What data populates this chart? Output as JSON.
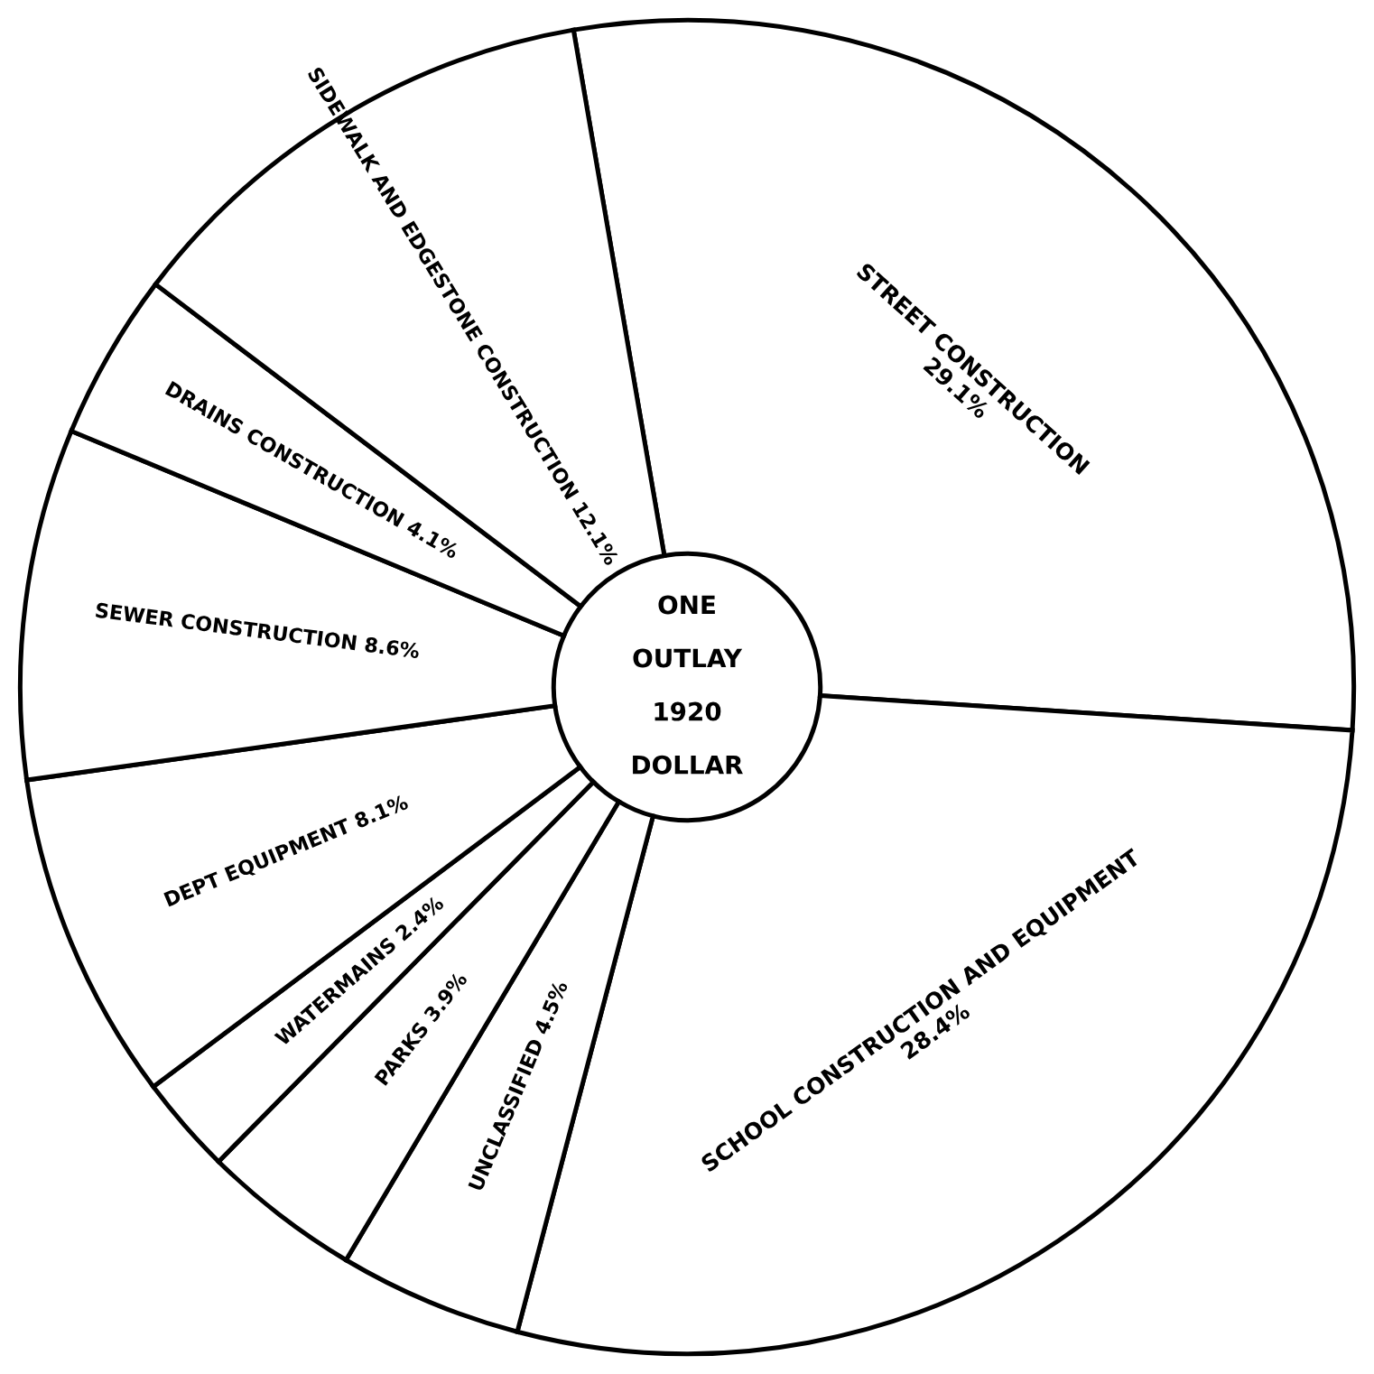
{
  "chart_data": {
    "type": "donut",
    "categories": [
      "STREET CONSTRUCTION",
      "SCHOOL CONSTRUCTION AND EQUIPMENT",
      "UNCLASSIFIED",
      "PARKS",
      "WATERMAINS",
      "DEPT EQUIPMENT",
      "SEWER CONSTRUCTION",
      "DRAINS CONSTRUCTION",
      "SIDEWALK AND EDGESTONE CONSTRUCTION"
    ],
    "values": [
      29.1,
      28.4,
      4.5,
      3.9,
      2.4,
      8.1,
      8.6,
      4.1,
      12.1
    ],
    "value_labels": [
      "29.1%",
      "28.4%",
      "4.5%",
      "3.9%",
      "2.4%",
      "8.1%",
      "8.6%",
      "4.1%",
      "12.1%"
    ],
    "colors": [
      "#ffffff",
      "#ffffff",
      "#ffffff",
      "#ffffff",
      "#ffffff",
      "#ffffff",
      "#ffffff",
      "#ffffff",
      "#ffffff"
    ],
    "annotations": [
      "ONE",
      "OUTLAY",
      "1920",
      "DOLLAR"
    ]
  }
}
